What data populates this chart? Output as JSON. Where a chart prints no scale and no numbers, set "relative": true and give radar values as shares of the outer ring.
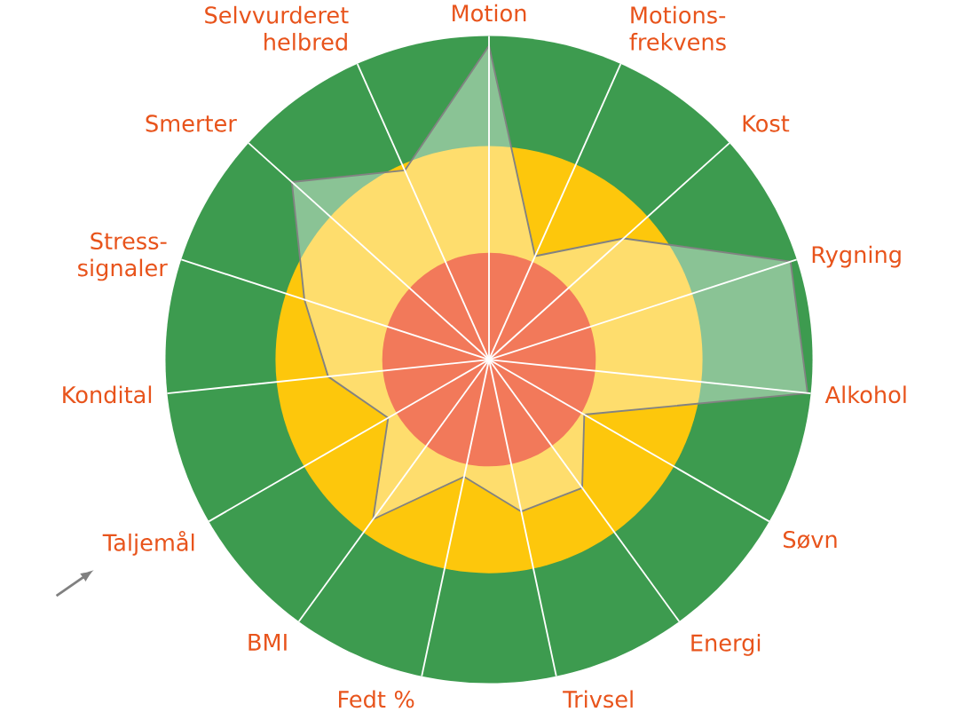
{
  "chart_data": {
    "type": "radar",
    "relative": true,
    "categories": [
      "Motion",
      "Motions-frekvens",
      "Kost",
      "Rygning",
      "Alkohol",
      "Søvn",
      "Energi",
      "Trivsel",
      "Fedt %",
      "BMI",
      "Taljemål",
      "Kondital",
      "Stress-signaler",
      "Smerter",
      "Selvvurderet helbred"
    ],
    "series": [
      {
        "color": "#ffffff",
        "values": [
          0.97,
          0.35,
          0.56,
          0.98,
          0.99,
          0.34,
          0.49,
          0.48,
          0.37,
          0.61,
          0.36,
          0.5,
          0.6,
          0.82,
          0.64
        ]
      }
    ]
  }
}
